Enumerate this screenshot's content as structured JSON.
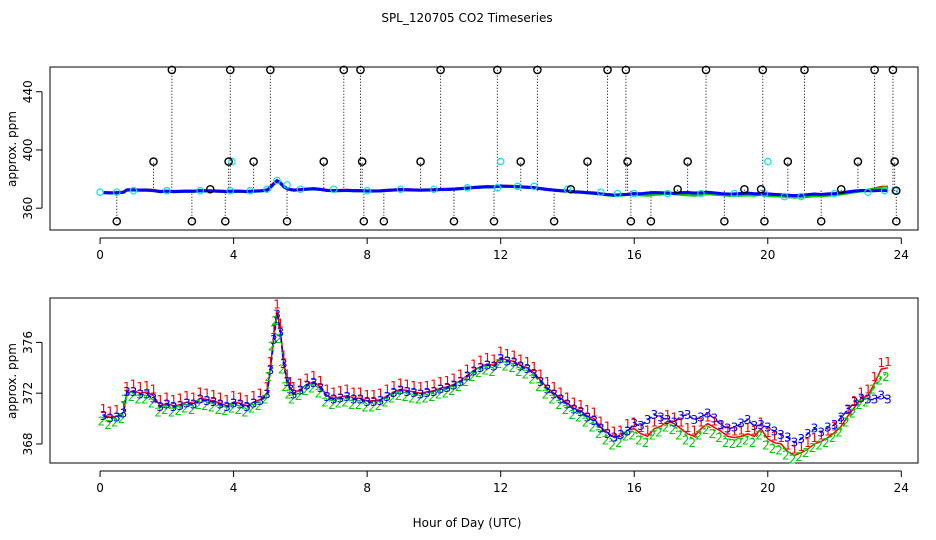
{
  "title": "SPL_120705  CO2 Timeseries",
  "xlabel": "Hour of Day (UTC)",
  "colors": {
    "black": "#000000",
    "red": "#ff0000",
    "green": "#00cc00",
    "blue": "#0000ff",
    "cyan": "#00e5ee"
  },
  "chart_data": [
    {
      "type": "scatter",
      "ylabel": "approx. ppm",
      "xlim": [
        -1.5,
        24.5
      ],
      "ylim": [
        345,
        457
      ],
      "xticks": [
        "0",
        "4",
        "8",
        "12",
        "16",
        "20",
        "24"
      ],
      "yticks": [
        "360",
        "400",
        "440"
      ],
      "series": [
        {
          "marker": "circle",
          "color": "#00e5ee",
          "points": [
            [
              0,
              371
            ],
            [
              0.5,
              371
            ],
            [
              1,
              372
            ],
            [
              2,
              372
            ],
            [
              3,
              372
            ],
            [
              3.9,
              372
            ],
            [
              3.95,
              392
            ],
            [
              4.5,
              372
            ],
            [
              5,
              373
            ],
            [
              5.3,
              379
            ],
            [
              5.6,
              376
            ],
            [
              6,
              373
            ],
            [
              7,
              373
            ],
            [
              8,
              372
            ],
            [
              9,
              373
            ],
            [
              10,
              373
            ],
            [
              11,
              374
            ],
            [
              11.9,
              374
            ],
            [
              12,
              392
            ],
            [
              12.5,
              375
            ],
            [
              13,
              375
            ],
            [
              14,
              373
            ],
            [
              15,
              371
            ],
            [
              15.5,
              370
            ],
            [
              16,
              370
            ],
            [
              17,
              370
            ],
            [
              18,
              370
            ],
            [
              19,
              370
            ],
            [
              19.9,
              370
            ],
            [
              20,
              392
            ],
            [
              20.5,
              368
            ],
            [
              21,
              368
            ],
            [
              22,
              370
            ],
            [
              23,
              371
            ],
            [
              23.5,
              372
            ],
            [
              23.8,
              372
            ]
          ]
        },
        {
          "marker": "circle",
          "color": "#000000",
          "points": [
            [
              0.5,
              351
            ],
            [
              1.6,
              392
            ],
            [
              2.15,
              455
            ],
            [
              2.75,
              351
            ],
            [
              3.3,
              373
            ],
            [
              3.75,
              351
            ],
            [
              3.9,
              455
            ],
            [
              3.85,
              392
            ],
            [
              4.6,
              392
            ],
            [
              5.1,
              455
            ],
            [
              5.6,
              351
            ],
            [
              6.7,
              392
            ],
            [
              7.3,
              455
            ],
            [
              7.8,
              455
            ],
            [
              7.85,
              392
            ],
            [
              7.9,
              351
            ],
            [
              8.5,
              351
            ],
            [
              9.6,
              392
            ],
            [
              10.2,
              455
            ],
            [
              10.6,
              351
            ],
            [
              11.8,
              351
            ],
            [
              11.9,
              455
            ],
            [
              12.6,
              392
            ],
            [
              13.1,
              455
            ],
            [
              13.6,
              351
            ],
            [
              14.1,
              373
            ],
            [
              14.6,
              392
            ],
            [
              15.2,
              455
            ],
            [
              15.75,
              455
            ],
            [
              15.8,
              392
            ],
            [
              15.9,
              351
            ],
            [
              16.5,
              351
            ],
            [
              17.3,
              373
            ],
            [
              17.6,
              392
            ],
            [
              18.15,
              455
            ],
            [
              18.7,
              351
            ],
            [
              19.3,
              373
            ],
            [
              19.8,
              373
            ],
            [
              19.85,
              455
            ],
            [
              19.9,
              351
            ],
            [
              20.6,
              392
            ],
            [
              21.1,
              455
            ],
            [
              21.6,
              351
            ],
            [
              22.2,
              373
            ],
            [
              22.7,
              392
            ],
            [
              23.2,
              455
            ],
            [
              23.75,
              455
            ],
            [
              23.8,
              392
            ],
            [
              23.85,
              351
            ],
            [
              23.85,
              372
            ]
          ]
        }
      ],
      "line_series_colors": [
        "#ff0000",
        "#00cc00",
        "#0000ff"
      ]
    },
    {
      "type": "line",
      "ylabel": "approx. ppm",
      "xlim": [
        -1.5,
        24.5
      ],
      "ylim": [
        366.5,
        379.5
      ],
      "xticks": [
        "0",
        "4",
        "8",
        "12",
        "16",
        "20",
        "24"
      ],
      "yticks": [
        "368",
        "372",
        "376"
      ],
      "marker_labels": [
        "1",
        "2",
        "3"
      ],
      "x": [
        0.1,
        0.3,
        0.5,
        0.7,
        0.8,
        1.0,
        1.2,
        1.4,
        1.6,
        1.8,
        2.0,
        2.2,
        2.4,
        2.6,
        2.8,
        3.0,
        3.2,
        3.4,
        3.6,
        3.8,
        4.0,
        4.2,
        4.4,
        4.6,
        4.8,
        5.0,
        5.1,
        5.2,
        5.3,
        5.4,
        5.5,
        5.6,
        5.7,
        5.8,
        6.0,
        6.2,
        6.4,
        6.6,
        6.8,
        7.0,
        7.2,
        7.4,
        7.6,
        7.8,
        8.0,
        8.2,
        8.4,
        8.6,
        8.8,
        9.0,
        9.2,
        9.4,
        9.6,
        9.8,
        10.0,
        10.2,
        10.4,
        10.6,
        10.8,
        11.0,
        11.2,
        11.4,
        11.6,
        11.8,
        12.0,
        12.2,
        12.4,
        12.6,
        12.8,
        13.0,
        13.2,
        13.4,
        13.6,
        13.8,
        14.0,
        14.2,
        14.4,
        14.6,
        14.8,
        15.0,
        15.2,
        15.4,
        15.6,
        15.8,
        16.0,
        16.2,
        16.4,
        16.6,
        16.8,
        17.0,
        17.2,
        17.4,
        17.6,
        17.8,
        18.0,
        18.2,
        18.4,
        18.6,
        18.8,
        19.0,
        19.2,
        19.4,
        19.6,
        19.8,
        20.0,
        20.2,
        20.4,
        20.6,
        20.8,
        21.0,
        21.2,
        21.4,
        21.6,
        21.8,
        22.0,
        22.2,
        22.4,
        22.6,
        22.8,
        23.0,
        23.2,
        23.4,
        23.6
      ],
      "series": [
        {
          "name": "1",
          "color": "#ff0000",
          "values": [
            370.3,
            370.1,
            370.2,
            370.5,
            372.0,
            372.2,
            372.0,
            372.1,
            371.8,
            371.0,
            371.2,
            371.0,
            371.1,
            371.3,
            371.2,
            371.6,
            371.5,
            371.4,
            371.2,
            371.0,
            371.3,
            371.2,
            371.0,
            371.3,
            371.5,
            372.0,
            374.0,
            376.5,
            378.5,
            377.0,
            374.5,
            373.0,
            372.4,
            372.0,
            372.3,
            372.7,
            372.9,
            372.5,
            371.8,
            371.6,
            371.7,
            371.8,
            371.6,
            371.6,
            371.4,
            371.4,
            371.5,
            371.8,
            372.1,
            372.3,
            372.2,
            372.1,
            372.0,
            372.1,
            372.2,
            372.4,
            372.5,
            372.7,
            373.0,
            373.4,
            373.8,
            374.1,
            374.3,
            374.2,
            374.8,
            374.6,
            374.5,
            374.2,
            374.0,
            373.6,
            373.0,
            372.4,
            372.0,
            371.6,
            371.2,
            370.8,
            370.6,
            370.2,
            370.0,
            369.3,
            368.9,
            368.5,
            368.6,
            369.1,
            369.2,
            368.8,
            368.6,
            369.2,
            369.4,
            369.8,
            369.6,
            369.2,
            368.8,
            368.6,
            369.2,
            369.6,
            369.3,
            369.0,
            368.6,
            368.5,
            368.6,
            368.8,
            368.6,
            369.2,
            368.4,
            368.1,
            368.0,
            367.4,
            367.1,
            367.3,
            367.6,
            368.0,
            368.2,
            368.5,
            368.9,
            369.4,
            370.2,
            370.9,
            371.6,
            371.8,
            372.8,
            373.9,
            374.0
          ]
        },
        {
          "name": "2",
          "color": "#00cc00",
          "values": [
            370.1,
            369.8,
            370.0,
            370.3,
            371.8,
            372.0,
            371.8,
            371.8,
            371.5,
            370.8,
            371.0,
            370.8,
            370.9,
            371.1,
            371.0,
            371.4,
            371.3,
            371.2,
            371.0,
            370.9,
            371.1,
            371.0,
            370.8,
            371.1,
            371.3,
            371.8,
            373.6,
            376.0,
            378.0,
            376.6,
            374.2,
            372.8,
            372.2,
            371.8,
            372.1,
            372.5,
            372.7,
            372.3,
            371.6,
            371.4,
            371.5,
            371.6,
            371.4,
            371.4,
            371.2,
            371.2,
            371.3,
            371.6,
            371.9,
            372.1,
            372.0,
            371.9,
            371.8,
            371.9,
            372.0,
            372.2,
            372.3,
            372.5,
            372.8,
            373.2,
            373.6,
            373.9,
            374.1,
            374.0,
            374.6,
            374.4,
            374.3,
            374.0,
            373.8,
            373.4,
            372.8,
            372.2,
            371.8,
            371.4,
            371.0,
            370.6,
            370.4,
            370.0,
            369.6,
            369.1,
            368.6,
            368.2,
            368.4,
            368.9,
            369.0,
            368.6,
            368.4,
            369.0,
            369.2,
            369.6,
            369.4,
            369.0,
            368.6,
            368.4,
            369.0,
            369.4,
            369.1,
            368.8,
            368.4,
            368.3,
            368.4,
            368.6,
            368.4,
            369.0,
            368.2,
            367.9,
            367.8,
            367.4,
            367.1,
            367.3,
            367.6,
            368.0,
            368.2,
            368.4,
            368.8,
            369.2,
            370.0,
            370.7,
            371.4,
            371.6,
            372.6,
            373.3,
            373.6
          ]
        },
        {
          "name": "3",
          "color": "#0000ff",
          "values": [
            370.2,
            370.0,
            370.1,
            370.4,
            372.1,
            372.1,
            371.9,
            371.9,
            371.6,
            370.9,
            371.1,
            370.9,
            371.0,
            371.2,
            371.1,
            371.5,
            371.4,
            371.3,
            371.1,
            370.9,
            371.2,
            371.1,
            370.9,
            371.2,
            371.4,
            371.9,
            373.8,
            376.2,
            378.2,
            376.8,
            374.3,
            372.9,
            372.3,
            371.9,
            372.2,
            372.6,
            372.8,
            372.4,
            371.7,
            371.5,
            371.6,
            371.7,
            371.5,
            371.5,
            371.3,
            371.3,
            371.4,
            371.7,
            372.0,
            372.2,
            372.1,
            372.0,
            371.9,
            372.0,
            372.1,
            372.3,
            372.4,
            372.6,
            372.9,
            373.3,
            373.7,
            374.0,
            374.2,
            374.1,
            374.7,
            374.5,
            374.4,
            374.1,
            373.9,
            373.5,
            372.9,
            372.3,
            371.9,
            371.5,
            371.1,
            370.7,
            370.5,
            370.1,
            369.8,
            369.2,
            368.8,
            368.5,
            368.7,
            369.0,
            369.6,
            369.4,
            369.9,
            370.3,
            370.1,
            369.9,
            369.7,
            370.2,
            370.3,
            369.9,
            370.1,
            370.4,
            370.0,
            369.5,
            369.2,
            369.3,
            369.6,
            369.9,
            369.4,
            369.5,
            369.3,
            369.0,
            368.7,
            368.5,
            368.1,
            368.4,
            368.8,
            369.2,
            368.9,
            369.3,
            369.5,
            370.1,
            370.7,
            371.3,
            371.6,
            371.5,
            371.5,
            371.8,
            371.5
          ]
        }
      ]
    }
  ]
}
